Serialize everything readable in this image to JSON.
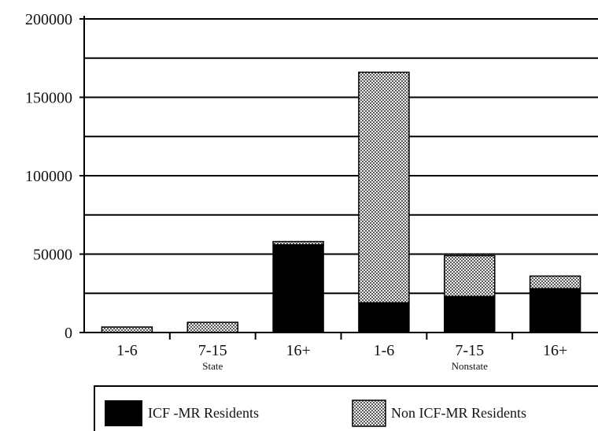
{
  "chart_data": {
    "type": "bar",
    "stacked": true,
    "categories": [
      "1-6",
      "7-15",
      "16+",
      "1-6",
      "7-15",
      "16+"
    ],
    "groups": [
      {
        "label": "State",
        "categories": [
          "1-6",
          "7-15",
          "16+"
        ]
      },
      {
        "label": "Nonstate",
        "categories": [
          "1-6",
          "7-15",
          "16+"
        ]
      }
    ],
    "series": [
      {
        "name": "ICF -MR Residents",
        "pattern": "solid",
        "color": "#000000",
        "values": [
          0,
          0,
          56000,
          19000,
          23000,
          28000
        ]
      },
      {
        "name": "Non ICF-MR Residents",
        "pattern": "dotted",
        "color": "#9a9a9a",
        "values": [
          3500,
          6500,
          2000,
          147000,
          26000,
          8000
        ]
      }
    ],
    "ylim": [
      0,
      200000
    ],
    "yticks": [
      0,
      50000,
      100000,
      150000,
      200000
    ],
    "ytick_labels": [
      "0",
      "50000",
      "100000",
      "150000",
      "200000"
    ],
    "grid": true,
    "legend_position": "bottom"
  }
}
